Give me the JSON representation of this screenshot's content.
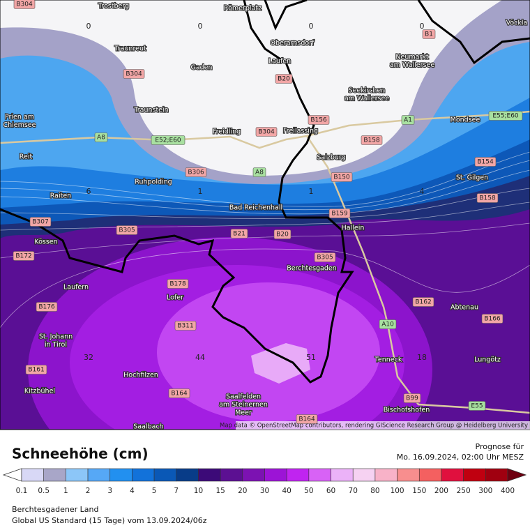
{
  "map": {
    "places": [
      [
        "Trostberg"
      ],
      [
        "Römerplatz"
      ],
      [
        "Traunreut"
      ],
      [
        "Oberarnsdorf"
      ],
      [
        "Laufen"
      ],
      [
        "Gaden"
      ],
      [
        "Seekirchen",
        "am Wallersee"
      ],
      [
        "Neumarkt",
        "am Wallersee"
      ],
      [
        "Traunstein"
      ],
      [
        "Prien am",
        "Chiemsee"
      ],
      [
        "Freilassing"
      ],
      [
        "Freidling"
      ],
      [
        "Mondsee"
      ],
      [
        "Salzburg"
      ],
      [
        "Reit"
      ],
      [
        "Ruhpolding"
      ],
      [
        "St. Gilgen"
      ],
      [
        "Raiten"
      ],
      [
        "Bad Reichenhall"
      ],
      [
        "Hallein"
      ],
      [
        "Kössen"
      ],
      [
        "Berchtesgaden"
      ],
      [
        "Laufern"
      ],
      [
        "Lofer"
      ],
      [
        "Abtenau"
      ],
      [
        "St. Johann",
        "in Tirol"
      ],
      [
        "Tenneck"
      ],
      [
        "Lungötz"
      ],
      [
        "Hochfilzen"
      ],
      [
        "Kitzbühel"
      ],
      [
        "Saalfelden",
        "am Steinernen",
        "Meer"
      ],
      [
        "Bischofshofen"
      ],
      [
        "Saalbach"
      ],
      [
        "Vöckla"
      ]
    ],
    "road_shields": [
      "B304",
      "B1",
      "B304",
      "B20",
      "B156",
      "B304",
      "B158",
      "B306",
      "B150",
      "B154",
      "B158",
      "B159",
      "B307",
      "B305",
      "B21",
      "B20",
      "B172",
      "B305",
      "B178",
      "B162",
      "B176",
      "B166",
      "B311",
      "B161",
      "B164",
      "B99",
      "B164"
    ],
    "motorway_shields": [
      "A8",
      "E52;E60",
      "A8",
      "A1",
      "E55;E60",
      "A10",
      "E55"
    ],
    "contour_labels": [
      0,
      0,
      0,
      0,
      6,
      1,
      1,
      4,
      32,
      44,
      51,
      18
    ],
    "attribution": "Map data © OpenStreetMap contributors, rendering GIScience Research Group @ Heidelberg University"
  },
  "legend": {
    "title": "Schneehöhe (cm)",
    "forecast_label": "Prognose für",
    "forecast_time": "Mo. 16.09.2024, 02:00 Uhr MESZ",
    "scale_labels": [
      "0.1",
      "0.5",
      "1",
      "2",
      "3",
      "4",
      "5",
      "7",
      "10",
      "15",
      "20",
      "30",
      "40",
      "50",
      "60",
      "70",
      "80",
      "100",
      "150",
      "200",
      "250",
      "300",
      "400"
    ],
    "colors": [
      "#d8d8f6",
      "#a8a6c8",
      "#8cc6f8",
      "#56a8f6",
      "#2290f0",
      "#1272da",
      "#0a58b6",
      "#083c88",
      "#3c0a78",
      "#5c1092",
      "#7c12b2",
      "#9c14d6",
      "#c024f0",
      "#d862f6",
      "#ebb2f8",
      "#f6d2f2",
      "#f8b2c8",
      "#f88e8e",
      "#f46060",
      "#e0103e",
      "#c00010",
      "#a00010"
    ],
    "region": "Berchtesgadener Land",
    "model": "Global US Standard (15 Tage) vom  13.09.2024/06z"
  }
}
